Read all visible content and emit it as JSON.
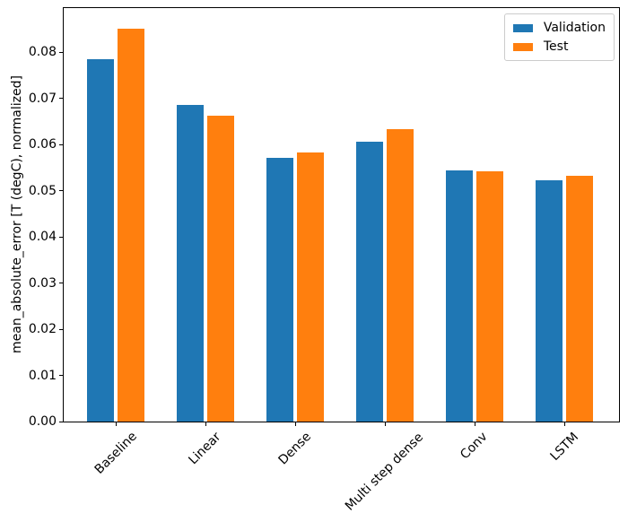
{
  "chart_data": {
    "type": "bar",
    "title": "",
    "xlabel": "",
    "ylabel": "mean_absolute_error [T (degC), normalized]",
    "categories": [
      "Baseline",
      "Linear",
      "Dense",
      "Multi step dense",
      "Conv",
      "LSTM"
    ],
    "series": [
      {
        "name": "Validation",
        "color": "#1f77b4",
        "values": [
          0.0785,
          0.0686,
          0.0572,
          0.0606,
          0.0545,
          0.0523
        ]
      },
      {
        "name": "Test",
        "color": "#ff7f0e",
        "values": [
          0.0852,
          0.0663,
          0.0583,
          0.0633,
          0.0542,
          0.0533
        ]
      }
    ],
    "ylim": [
      0,
      0.0896
    ],
    "ytick_values": [
      0.0,
      0.01,
      0.02,
      0.03,
      0.04,
      0.05,
      0.06,
      0.07,
      0.08
    ],
    "ytick_labels": [
      "0.00",
      "0.01",
      "0.02",
      "0.03",
      "0.04",
      "0.05",
      "0.06",
      "0.07",
      "0.08"
    ],
    "xtick_rotation_deg": 45,
    "grid": false,
    "legend": {
      "position": "upper right",
      "entries": [
        "Validation",
        "Test"
      ]
    }
  }
}
